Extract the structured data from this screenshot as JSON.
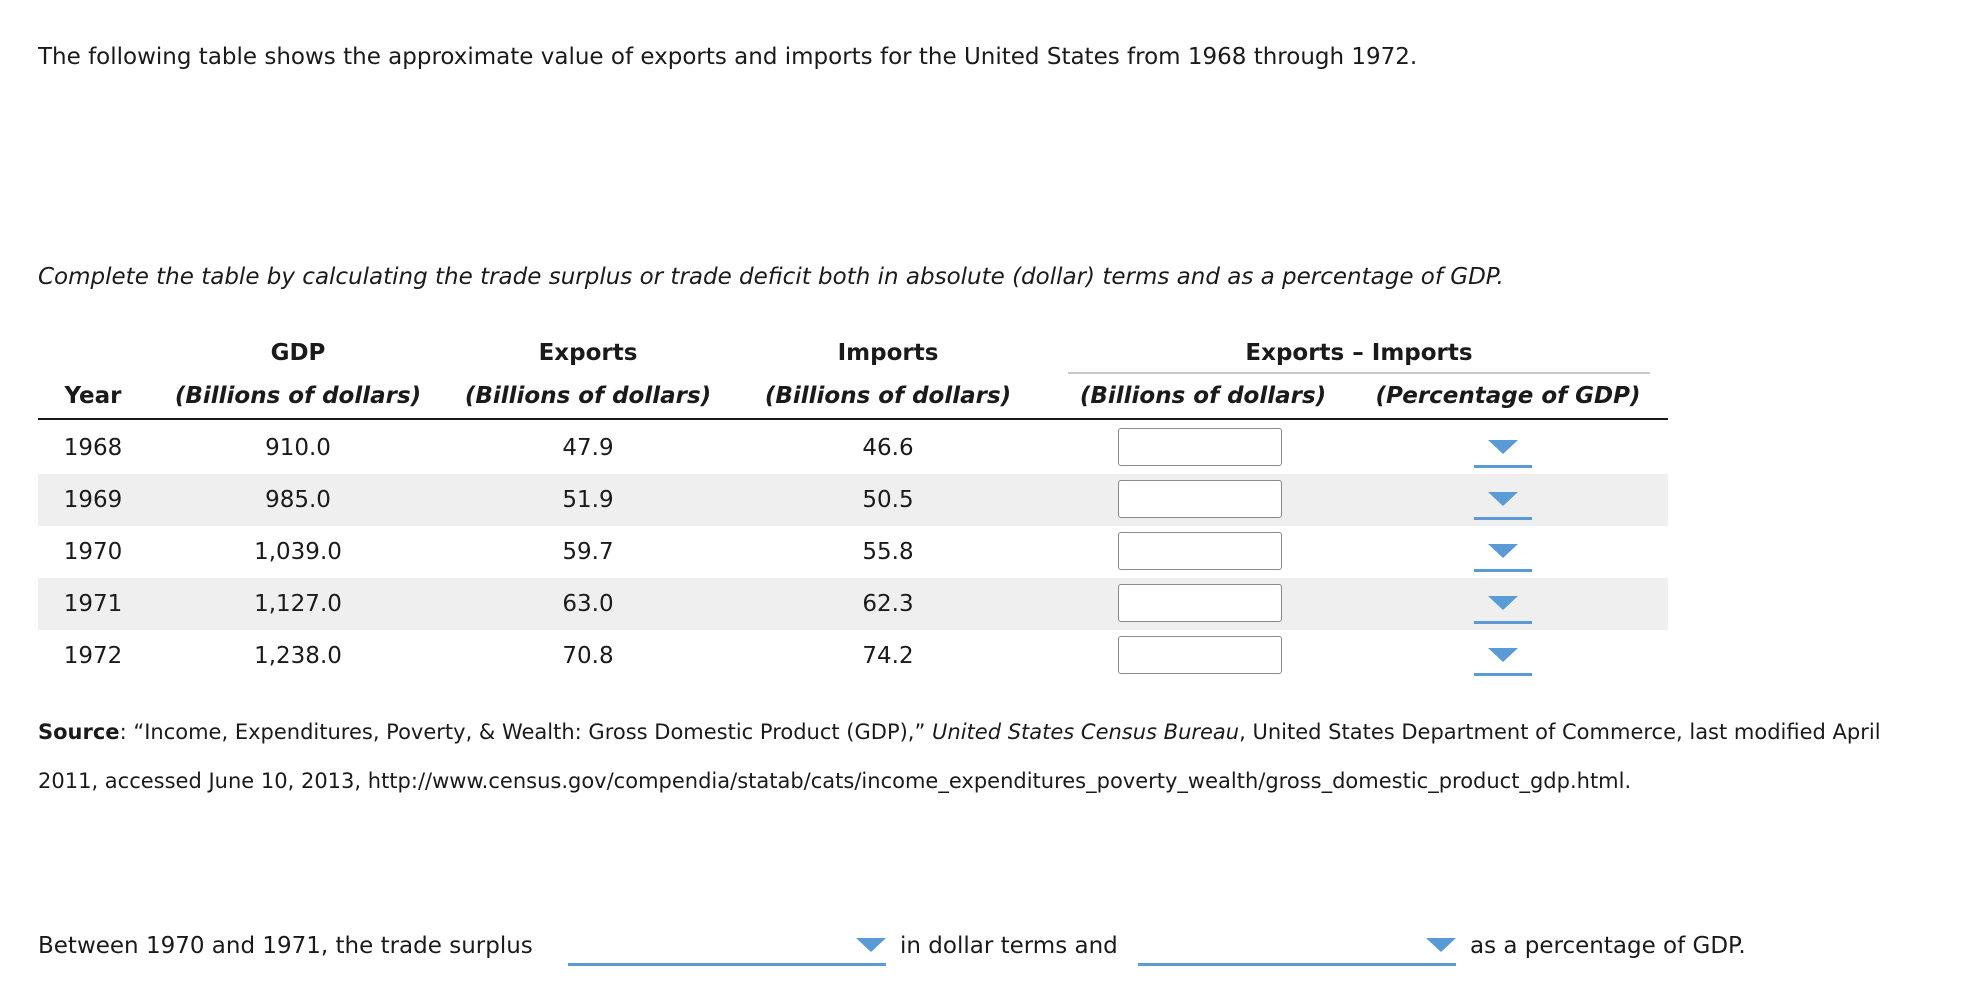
{
  "intro_text": "The following table shows the approximate value of exports and imports for the United States from 1968 through 1972.",
  "instruction_text": "Complete the table by calculating the trade surplus or trade deficit both in absolute (dollar) terms and as a percentage of GDP.",
  "table": {
    "headers": {
      "gdp": "GDP",
      "exports": "Exports",
      "imports": "Imports",
      "exports_minus_imports": "Exports – Imports",
      "year": "Year",
      "unit_billions": "(Billions of dollars)",
      "unit_percent": "(Percentage of GDP)"
    },
    "rows": [
      {
        "year": "1968",
        "gdp": "910.0",
        "exports": "47.9",
        "imports": "46.6",
        "diff_dollars": "",
        "diff_percent": ""
      },
      {
        "year": "1969",
        "gdp": "985.0",
        "exports": "51.9",
        "imports": "50.5",
        "diff_dollars": "",
        "diff_percent": ""
      },
      {
        "year": "1970",
        "gdp": "1,039.0",
        "exports": "59.7",
        "imports": "55.8",
        "diff_dollars": "",
        "diff_percent": ""
      },
      {
        "year": "1971",
        "gdp": "1,127.0",
        "exports": "63.0",
        "imports": "62.3",
        "diff_dollars": "",
        "diff_percent": ""
      },
      {
        "year": "1972",
        "gdp": "1,238.0",
        "exports": "70.8",
        "imports": "74.2",
        "diff_dollars": "",
        "diff_percent": ""
      }
    ]
  },
  "source": {
    "label": "Source",
    "text_1": ": “Income, Expenditures, Poverty, & Wealth: Gross Domestic Product (GDP),” ",
    "publisher": "United States Census Bureau",
    "text_2": ", United States Department of Commerce, last modified April 2011, accessed June 10, 2013, http://www.census.gov/compendia/statab/cats/income_expenditures_poverty_wealth/gross_domestic_product_gdp.html."
  },
  "final_question": {
    "part_1": "Between 1970 and 1971, the trade surplus",
    "part_2": "in dollar terms and",
    "part_3": "as a percentage of GDP.",
    "dropdown_1_value": "",
    "dropdown_2_value": ""
  },
  "colors": {
    "accent": "#5b9bd5",
    "row_shade": "#efefef",
    "input_border": "#8a8a8a"
  },
  "icons": {
    "dropdown": "chevron-down-icon"
  }
}
